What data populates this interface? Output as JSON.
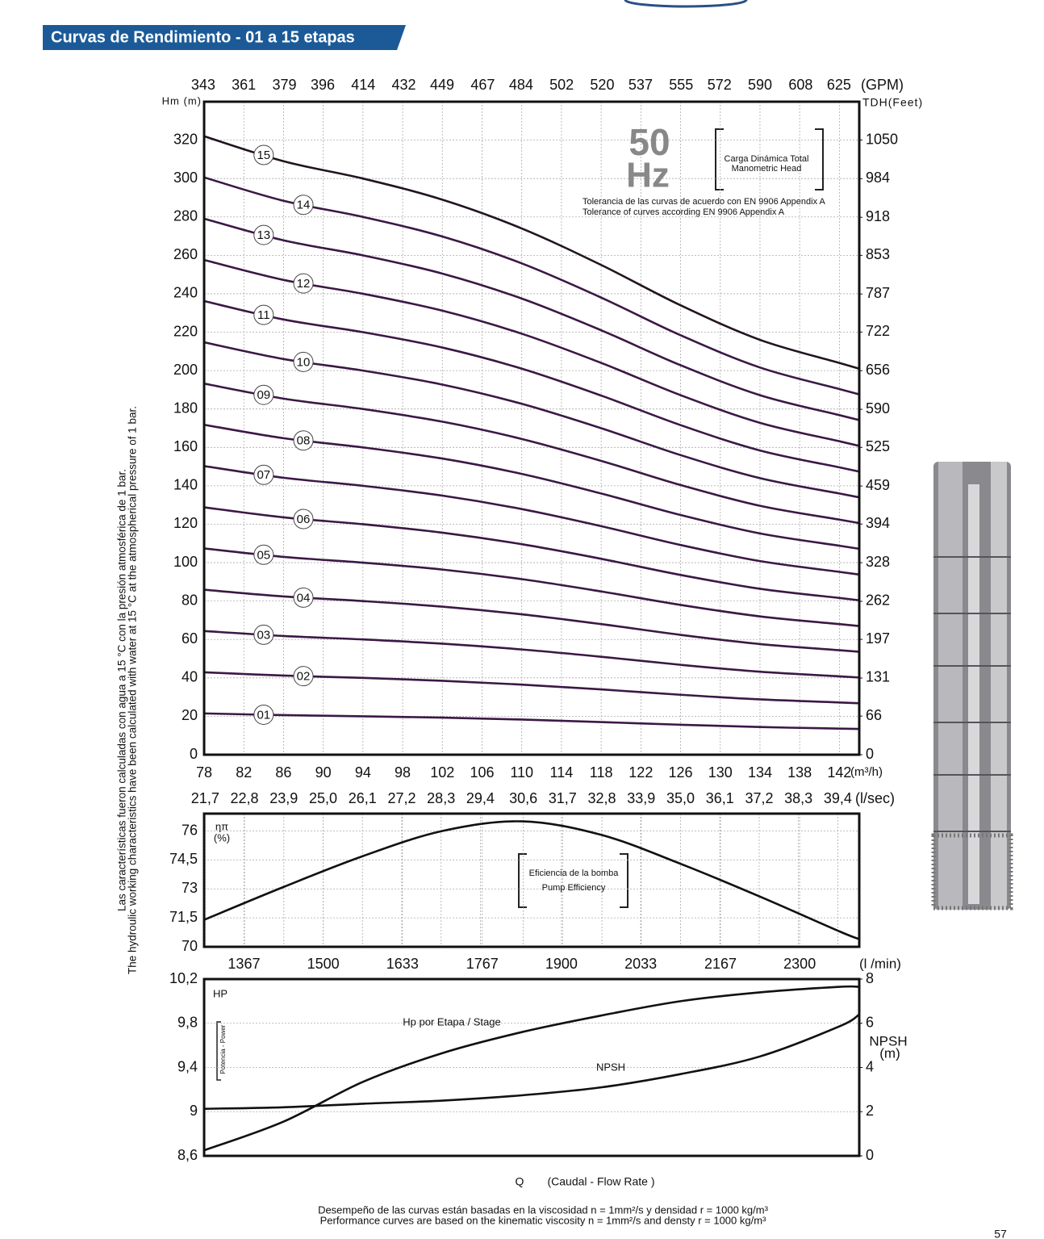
{
  "header": {
    "title": "Curvas de Rendimiento - 01 a 15 etapas"
  },
  "side_note": [
    "Las características fueron calculadas con agua a 15 °C  con la presión atmosférica de 1 bar.",
    "The hydroulic working characteristics have been calculated with water at 15 °C at the atmospherical pressure of 1 bar."
  ],
  "chart_data": [
    {
      "type": "line",
      "ylabel": "Hm (m)",
      "y2label": "TDH(Feet)",
      "xlabel": "(m³/h)",
      "x2label": "(GPM)",
      "grid": true,
      "x": [
        78,
        86,
        94,
        102,
        110,
        118,
        126,
        134,
        142,
        144
      ],
      "xlim": [
        78,
        144
      ],
      "xticks": [
        78,
        82,
        86,
        90,
        94,
        98,
        102,
        106,
        110,
        114,
        118,
        122,
        126,
        130,
        134,
        138,
        142
      ],
      "ylim": [
        0,
        340
      ],
      "yticks": [
        0,
        20,
        40,
        60,
        80,
        100,
        120,
        140,
        160,
        180,
        200,
        220,
        240,
        260,
        280,
        300,
        320
      ],
      "y2lim": [
        0,
        1115.5
      ],
      "y2ticks": [
        0,
        66,
        131,
        197,
        262,
        328,
        394,
        459,
        525,
        590,
        656,
        722,
        787,
        853,
        918,
        984,
        1050
      ],
      "x2lim": [
        343.4,
        634
      ],
      "x2ticks": [
        343,
        361,
        379,
        396,
        414,
        432,
        449,
        467,
        484,
        502,
        520,
        537,
        555,
        572,
        590,
        608,
        625
      ],
      "series": [
        {
          "name": "01",
          "color": "#3b1845",
          "values": [
            21.5,
            20.6,
            20.0,
            19.3,
            18.3,
            17.0,
            15.6,
            14.4,
            13.6,
            13.4
          ]
        },
        {
          "name": "02",
          "color": "#3b1845",
          "values": [
            42.9,
            41.2,
            40.0,
            38.5,
            36.5,
            34.0,
            31.2,
            28.8,
            27.2,
            26.8
          ]
        },
        {
          "name": "03",
          "color": "#3b1845",
          "values": [
            64.4,
            61.8,
            60.0,
            57.8,
            54.8,
            51.0,
            46.8,
            43.2,
            40.8,
            40.2
          ]
        },
        {
          "name": "04",
          "color": "#3b1845",
          "values": [
            85.9,
            82.4,
            80.0,
            77.1,
            73.1,
            68.0,
            62.4,
            57.6,
            54.4,
            53.6
          ]
        },
        {
          "name": "05",
          "color": "#3b1845",
          "values": [
            107.4,
            103.0,
            100.0,
            96.4,
            91.4,
            85.0,
            78.0,
            72.0,
            68.0,
            67.0
          ]
        },
        {
          "name": "06",
          "color": "#3b1845",
          "values": [
            128.8,
            123.6,
            120.0,
            115.6,
            109.6,
            102.0,
            93.6,
            86.4,
            81.6,
            80.4
          ]
        },
        {
          "name": "07",
          "color": "#3b1845",
          "values": [
            150.3,
            144.2,
            140.0,
            134.9,
            127.9,
            119.0,
            109.2,
            100.8,
            95.2,
            93.8
          ]
        },
        {
          "name": "08",
          "color": "#3b1845",
          "values": [
            171.8,
            164.8,
            160.0,
            154.2,
            146.2,
            136.0,
            124.8,
            115.2,
            108.8,
            107.2
          ]
        },
        {
          "name": "09",
          "color": "#3b1845",
          "values": [
            193.2,
            185.4,
            180.0,
            173.4,
            164.4,
            153.0,
            140.4,
            129.6,
            122.4,
            120.6
          ]
        },
        {
          "name": "10",
          "color": "#3b1845",
          "values": [
            214.7,
            206.0,
            200.0,
            192.7,
            182.7,
            170.0,
            156.0,
            144.0,
            136.0,
            134.0
          ]
        },
        {
          "name": "11",
          "color": "#3b1845",
          "values": [
            236.2,
            226.6,
            220.0,
            212.0,
            201.0,
            187.0,
            171.6,
            158.4,
            149.6,
            147.4
          ]
        },
        {
          "name": "12",
          "color": "#3b1845",
          "values": [
            257.6,
            247.2,
            240.0,
            231.2,
            219.2,
            204.0,
            187.2,
            172.8,
            163.2,
            160.8
          ]
        },
        {
          "name": "13",
          "color": "#3b1845",
          "values": [
            279.1,
            267.8,
            260.0,
            250.5,
            237.5,
            221.0,
            202.8,
            187.2,
            176.8,
            174.2
          ]
        },
        {
          "name": "14",
          "color": "#3b1845",
          "values": [
            300.6,
            288.4,
            280.0,
            269.8,
            255.8,
            238.0,
            218.4,
            201.6,
            190.4,
            187.6
          ]
        },
        {
          "name": "15",
          "color": "#231420",
          "values": [
            322.0,
            309.0,
            300.0,
            289.0,
            274.0,
            255.0,
            234.0,
            216.0,
            204.0,
            201.0
          ]
        }
      ],
      "annotations": [
        "50",
        "Hz",
        "Carga Dinámica Total",
        "Manometric Head",
        "Tolerancia de las curvas de acuerdo con EN 9906 Appendix A",
        "Tolerance of curves according EN 9906 Appendix A"
      ]
    },
    {
      "type": "line",
      "ylabel": "ηπ",
      "yunit": "(%)",
      "x2label": "(l/sec)",
      "x3label": "(l /min)",
      "grid": true,
      "x": [
        78,
        86,
        94,
        102,
        110,
        118,
        126,
        134,
        142,
        144
      ],
      "xlim": [
        78,
        144
      ],
      "ylim": [
        70,
        76.9
      ],
      "yticks": [
        70,
        {
          "value": 71.5,
          "label": "71,5"
        },
        73,
        {
          "value": 74.5,
          "label": "74,5"
        },
        76
      ],
      "x2lim": [
        21.67,
        40
      ],
      "x2ticks": [
        {
          "value": 21.7,
          "label": "21,7"
        },
        {
          "value": 22.8,
          "label": "22,8"
        },
        {
          "value": 23.9,
          "label": "23,9"
        },
        {
          "value": 25,
          "label": "25,0"
        },
        {
          "value": 26.1,
          "label": "26,1"
        },
        {
          "value": 27.2,
          "label": "27,2"
        },
        {
          "value": 28.3,
          "label": "28,3"
        },
        {
          "value": 29.4,
          "label": "29,4"
        },
        {
          "value": 30.6,
          "label": "30,6"
        },
        {
          "value": 31.7,
          "label": "31,7"
        },
        {
          "value": 32.8,
          "label": "32,8"
        },
        {
          "value": 33.9,
          "label": "33,9"
        },
        {
          "value": 35,
          "label": "35,0"
        },
        {
          "value": 36.1,
          "label": "36,1"
        },
        {
          "value": 37.2,
          "label": "37,2"
        },
        {
          "value": 38.3,
          "label": "38,3"
        },
        {
          "value": 39.4,
          "label": "39,4"
        }
      ],
      "x3lim": [
        1300,
        2400
      ],
      "x3ticks": [
        1367,
        1500,
        1633,
        1767,
        1900,
        2033,
        2167,
        2300
      ],
      "series": [
        {
          "color": "#111111",
          "values": [
            71.4,
            73.1,
            74.7,
            76.0,
            76.5,
            75.8,
            74.3,
            72.6,
            70.8,
            70.4
          ]
        }
      ],
      "annotations": [
        "Eficiencia de la bomba",
        "Pump Efficiency"
      ]
    },
    {
      "type": "line",
      "ylabel": "HP",
      "y2label": "NPSH",
      "y2unit": "(m)",
      "grid": true,
      "x": [
        78,
        86,
        94,
        102,
        110,
        118,
        126,
        134,
        142,
        144
      ],
      "xlim": [
        78,
        144
      ],
      "ylim": [
        8.6,
        10.2
      ],
      "yticks": [
        {
          "value": 8.6,
          "label": "8,6"
        },
        9,
        {
          "value": 9.4,
          "label": "9,4"
        },
        {
          "value": 9.8,
          "label": "9,8"
        },
        {
          "value": 10.2,
          "label": "10,2"
        }
      ],
      "y2lim": [
        0,
        8
      ],
      "y2ticks": [
        0,
        2,
        4,
        6,
        8
      ],
      "series": [
        {
          "name": "Hp por Etapa / Stage",
          "color": "#111111",
          "values": [
            8.65,
            8.91,
            9.27,
            9.53,
            9.72,
            9.87,
            10.0,
            10.08,
            10.13,
            10.13
          ]
        },
        {
          "name": "NPSH",
          "color": "#111111",
          "axis": "y2",
          "values": [
            2.13,
            2.2,
            2.36,
            2.5,
            2.74,
            3.1,
            3.7,
            4.5,
            5.86,
            6.4
          ]
        }
      ],
      "annotations": [
        "Potencia - Power"
      ]
    }
  ],
  "footer": {
    "axis_title": [
      "Q",
      "(Caudal - Flow Rate )"
    ],
    "notes": [
      "Desempeño de las curvas están basadas en la viscosidad n = 1mm²/s y densidad r = 1000 kg/m³",
      "Performance curves are based on the kinematic viscosity n = 1mm²/s and densty r = 1000 kg/m³"
    ],
    "page_number": "57"
  }
}
